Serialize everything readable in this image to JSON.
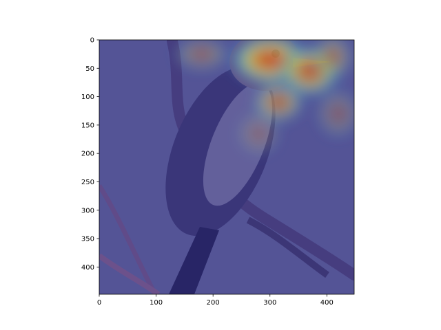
{
  "chart_data": {
    "type": "heatmap",
    "title": "",
    "xlabel": "",
    "ylabel": "",
    "xlim": [
      0,
      448
    ],
    "ylim": [
      448,
      0
    ],
    "y_inverted": true,
    "x_ticks": [
      0,
      100,
      200,
      300,
      400
    ],
    "y_ticks": [
      0,
      50,
      100,
      150,
      200,
      250,
      300,
      350,
      400
    ],
    "grid": false,
    "legend": "none",
    "colormap": "jet",
    "background_image": "bird-on-branch-photo",
    "heat_spots": [
      {
        "x": 300,
        "y": 35,
        "rx": 70,
        "ry": 45,
        "intensity": 1.0
      },
      {
        "x": 370,
        "y": 55,
        "rx": 55,
        "ry": 45,
        "intensity": 0.9
      },
      {
        "x": 315,
        "y": 110,
        "rx": 45,
        "ry": 35,
        "intensity": 0.75
      },
      {
        "x": 410,
        "y": 30,
        "rx": 35,
        "ry": 40,
        "intensity": 0.6
      },
      {
        "x": 180,
        "y": 25,
        "rx": 50,
        "ry": 30,
        "intensity": 0.45
      },
      {
        "x": 420,
        "y": 130,
        "rx": 40,
        "ry": 45,
        "intensity": 0.35
      },
      {
        "x": 280,
        "y": 165,
        "rx": 40,
        "ry": 40,
        "intensity": 0.3
      }
    ]
  }
}
